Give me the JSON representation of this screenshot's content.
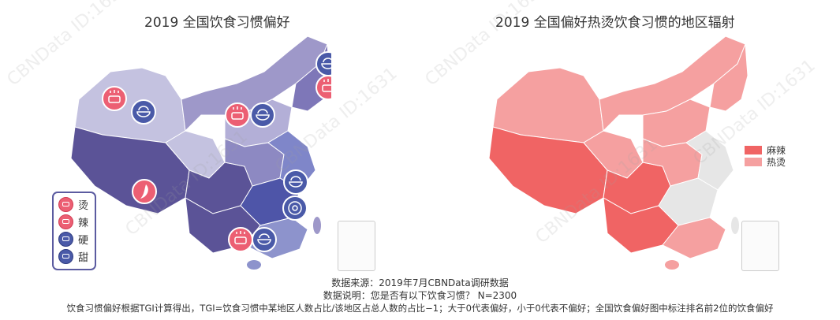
{
  "titles": {
    "left": "2019 全国饮食习惯偏好",
    "right": "2019 全国偏好热烫饮食习惯的地区辐射"
  },
  "left_legend": {
    "items": [
      {
        "label": "烫",
        "icon": "hot-pot-icon",
        "color": "#ec5f73"
      },
      {
        "label": "辣",
        "icon": "chili-icon",
        "color": "#ec5f73"
      },
      {
        "label": "硬",
        "icon": "pot-icon",
        "color": "#4a5aa8"
      },
      {
        "label": "甜",
        "icon": "donut-icon",
        "color": "#4a5aa8"
      }
    ]
  },
  "right_legend": {
    "items": [
      {
        "label": "麻辣",
        "color": "#f06464"
      },
      {
        "label": "热烫",
        "color": "#f5a0a0"
      }
    ]
  },
  "footer": {
    "source": "数据来源：2019年7月CBNData调研数据",
    "note": "数据说明：您是否有以下饮食习惯？ N=2300",
    "tgi": "饮食习惯偏好根据TGI计算得出，TGI=饮食习惯中某地区人数占比/该地区占总人数的占比−1；大于0代表偏好，小于0代表不偏好；全国饮食偏好图中标注排名前2位的饮食偏好"
  },
  "watermark": "CBNData ID:1631",
  "colors": {
    "purple_dark": "#5b5397",
    "purple_mid": "#9e98c9",
    "purple_light": "#c4c2e0",
    "blue_mid": "#4e55a8",
    "red_spicy": "#f06464",
    "red_hot": "#f5a0a0",
    "grey": "#e6e6e6"
  }
}
